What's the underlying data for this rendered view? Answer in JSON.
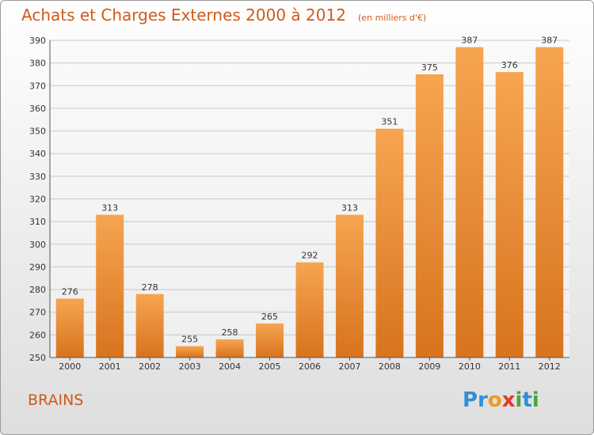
{
  "title": "Achats et Charges Externes 2000 à 2012",
  "unit_note": "(en milliers d'€)",
  "commune": "BRAINS",
  "brand": {
    "letters": [
      {
        "ch": "P",
        "color": "#2f8fd8"
      },
      {
        "ch": "r",
        "color": "#2f8fd8"
      },
      {
        "ch": "o",
        "color": "#f29a1a"
      },
      {
        "ch": "x",
        "color": "#e23a2a"
      },
      {
        "ch": "i",
        "color": "#4aa63c"
      },
      {
        "ch": "t",
        "color": "#2f8fd8"
      },
      {
        "ch": "i",
        "color": "#4aa63c"
      }
    ]
  },
  "colors": {
    "bar_top": "#f6a550",
    "bar_bottom": "#d8731e",
    "title": "#d05a18",
    "grid": "#c8c8c8"
  },
  "chart_data": {
    "type": "bar",
    "categories": [
      "2000",
      "2001",
      "2002",
      "2003",
      "2004",
      "2005",
      "2006",
      "2007",
      "2008",
      "2009",
      "2010",
      "2011",
      "2012"
    ],
    "values": [
      276,
      313,
      278,
      255,
      258,
      265,
      292,
      313,
      351,
      375,
      387,
      376,
      387
    ],
    "ylim": [
      250,
      390
    ],
    "yticks": [
      250,
      260,
      270,
      280,
      290,
      300,
      310,
      320,
      330,
      340,
      350,
      360,
      370,
      380,
      390
    ],
    "grid": true
  }
}
